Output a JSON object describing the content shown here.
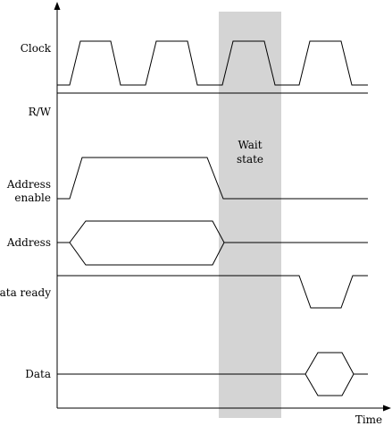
{
  "signals": {
    "clock": "Clock",
    "rw": "R/W",
    "address_enable_line1": "Address",
    "address_enable_line2": "enable",
    "address": "Address",
    "data_ready": "Data ready",
    "data": "Data"
  },
  "wait_state": {
    "line1": "Wait",
    "line2": "state"
  },
  "axis": {
    "x_label": "Time"
  },
  "colors": {
    "wait_state_fill": "#d4d4d4",
    "line": "#000000"
  }
}
